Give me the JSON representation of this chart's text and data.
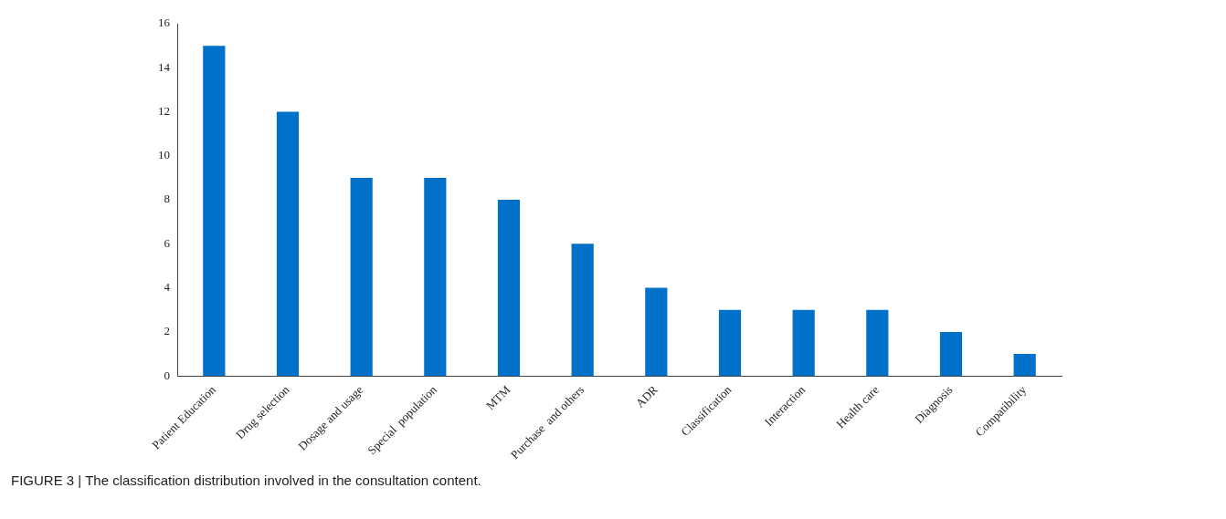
{
  "chart_data": {
    "type": "bar",
    "categories": [
      "Patient Education",
      "Drug selection",
      "Dosage and usage",
      "Special  population",
      "MTM",
      "Purchase  and others",
      "ADR",
      "Classification",
      "Interaction",
      "Health care",
      "Diagnosis",
      "Compatibility"
    ],
    "values": [
      15,
      12,
      9,
      9,
      8,
      6,
      4,
      3,
      3,
      3,
      2,
      1
    ],
    "color": "#0070c8",
    "ylim": [
      0,
      16
    ],
    "yticks": [
      0,
      2,
      4,
      6,
      8,
      10,
      12,
      14,
      16
    ],
    "grid": false,
    "legend": false,
    "annotations": [
      "FIGURE 3 | The classification distribution involved in the consultation content."
    ]
  }
}
